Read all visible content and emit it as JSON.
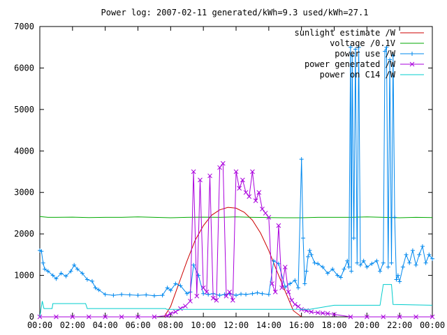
{
  "chart_data": {
    "type": "line",
    "title": "Power log: 2007-02-11 generated/kWh=9.3 used/kWh=27.1",
    "xlabel": "",
    "ylabel": "",
    "x_ticks": [
      "00:00",
      "02:00",
      "04:00",
      "06:00",
      "08:00",
      "10:00",
      "12:00",
      "14:00",
      "16:00",
      "18:00",
      "20:00",
      "22:00",
      "00:00"
    ],
    "y_ticks": [
      "0",
      "1000",
      "2000",
      "3000",
      "4000",
      "5000",
      "6000",
      "7000"
    ],
    "xlim": [
      0,
      24
    ],
    "ylim": [
      0,
      7000
    ],
    "grid": false,
    "legend_position": "top-right",
    "series": [
      {
        "name": "sunlight estimate /W",
        "color": "#cc0000",
        "marker": "none",
        "x": [
          7.6,
          8.0,
          8.5,
          9.0,
          9.5,
          10.0,
          10.5,
          11.0,
          11.5,
          12.0,
          12.5,
          13.0,
          13.5,
          14.0,
          14.5,
          15.0,
          15.5,
          16.0
        ],
        "y": [
          0,
          250,
          800,
          1350,
          1850,
          2200,
          2450,
          2580,
          2640,
          2620,
          2520,
          2330,
          2020,
          1600,
          1100,
          620,
          150,
          0
        ]
      },
      {
        "name": "voltage /0.1V",
        "color": "#00aa00",
        "marker": "none",
        "x": [
          0,
          0.5,
          1,
          2,
          3,
          4,
          5,
          6,
          7,
          8,
          9,
          10,
          11,
          12,
          13,
          14,
          15,
          16,
          17,
          18,
          19,
          20,
          21,
          22,
          23,
          24
        ],
        "y": [
          2420,
          2400,
          2400,
          2405,
          2395,
          2400,
          2400,
          2410,
          2400,
          2390,
          2400,
          2405,
          2400,
          2410,
          2400,
          2395,
          2390,
          2390,
          2400,
          2400,
          2400,
          2410,
          2400,
          2390,
          2400,
          2395
        ]
      },
      {
        "name": "power use /W",
        "color": "#0088ee",
        "marker": "plus",
        "x": [
          0,
          0.1,
          0.2,
          0.3,
          0.5,
          0.8,
          1.0,
          1.3,
          1.6,
          1.9,
          2.1,
          2.3,
          2.6,
          2.9,
          3.2,
          3.4,
          3.6,
          4.0,
          4.5,
          5.0,
          5.5,
          6.0,
          6.5,
          7.0,
          7.5,
          7.8,
          8.0,
          8.3,
          8.6,
          9.0,
          9.2,
          9.4,
          9.7,
          10.0,
          10.3,
          10.6,
          11.0,
          11.3,
          11.6,
          12.0,
          12.3,
          12.6,
          13.0,
          13.3,
          13.6,
          14.0,
          14.3,
          14.6,
          15.0,
          15.3,
          15.6,
          15.8,
          16.0,
          16.1,
          16.2,
          16.3,
          16.4,
          16.5,
          16.6,
          16.8,
          17.0,
          17.3,
          17.6,
          17.9,
          18.2,
          18.4,
          18.6,
          18.8,
          18.9,
          19.0,
          19.05,
          19.1,
          19.2,
          19.3,
          19.4,
          19.5,
          19.6,
          19.8,
          20.0,
          20.3,
          20.6,
          20.8,
          21.0,
          21.1,
          21.2,
          21.3,
          21.4,
          21.5,
          21.6,
          21.7,
          21.8,
          21.9,
          22.0,
          22.2,
          22.4,
          22.6,
          22.8,
          23.0,
          23.2,
          23.4,
          23.6,
          23.8,
          24.0
        ],
        "y": [
          1600,
          1580,
          1300,
          1150,
          1100,
          1000,
          920,
          1050,
          980,
          1100,
          1250,
          1150,
          1050,
          900,
          860,
          700,
          650,
          540,
          520,
          540,
          530,
          520,
          530,
          510,
          520,
          700,
          640,
          800,
          750,
          560,
          600,
          1250,
          1000,
          560,
          540,
          560,
          520,
          540,
          560,
          520,
          550,
          540,
          560,
          580,
          560,
          540,
          1350,
          1280,
          720,
          800,
          880,
          700,
          3800,
          1900,
          800,
          1100,
          1450,
          1600,
          1500,
          1300,
          1280,
          1200,
          1050,
          1150,
          1000,
          950,
          1150,
          1350,
          1200,
          6500,
          1100,
          6300,
          1900,
          6450,
          1300,
          6500,
          1250,
          1350,
          1200,
          1280,
          1350,
          1100,
          1300,
          6400,
          6500,
          1200,
          6200,
          1300,
          6300,
          2400,
          900,
          1000,
          850,
          1200,
          1500,
          1300,
          1600,
          1250,
          1500,
          1700,
          1300,
          1500,
          1400
        ]
      },
      {
        "name": "power generated /W",
        "color": "#aa00dd",
        "marker": "cross",
        "x": [
          0,
          1,
          2,
          3,
          4,
          5,
          6,
          7,
          7.8,
          8.0,
          8.3,
          8.6,
          8.9,
          9.2,
          9.4,
          9.6,
          9.8,
          10.0,
          10.2,
          10.4,
          10.6,
          10.8,
          11.0,
          11.2,
          11.4,
          11.6,
          11.8,
          12.0,
          12.2,
          12.4,
          12.6,
          12.8,
          13.0,
          13.2,
          13.4,
          13.6,
          13.8,
          14.0,
          14.2,
          14.4,
          14.6,
          14.8,
          15.0,
          15.2,
          15.4,
          15.6,
          15.8,
          16.0,
          16.3,
          16.6,
          17.0,
          17.3,
          17.6,
          18.0,
          19,
          20,
          21,
          22,
          23,
          24
        ],
        "y": [
          0,
          0,
          0,
          0,
          0,
          0,
          0,
          0,
          30,
          80,
          120,
          200,
          260,
          380,
          3500,
          500,
          3300,
          700,
          600,
          3400,
          450,
          400,
          3600,
          3700,
          500,
          600,
          400,
          3500,
          3100,
          3300,
          3000,
          2900,
          3500,
          2800,
          3000,
          2600,
          2500,
          2400,
          800,
          600,
          2200,
          700,
          1200,
          600,
          400,
          300,
          250,
          180,
          150,
          120,
          100,
          90,
          80,
          60,
          0,
          0,
          0,
          0,
          0,
          0
        ]
      },
      {
        "name": "power on C14 /W",
        "color": "#00cccc",
        "marker": "none",
        "x": [
          0,
          0.15,
          0.25,
          0.75,
          0.8,
          2.8,
          2.9,
          7.7,
          7.75,
          16.5,
          18.0,
          19.0,
          19.5,
          20.8,
          21.0,
          21.2,
          21.5,
          21.6,
          24.0
        ],
        "y": [
          0,
          380,
          200,
          200,
          320,
          320,
          200,
          200,
          180,
          180,
          280,
          280,
          280,
          280,
          780,
          780,
          780,
          300,
          280
        ]
      }
    ]
  }
}
